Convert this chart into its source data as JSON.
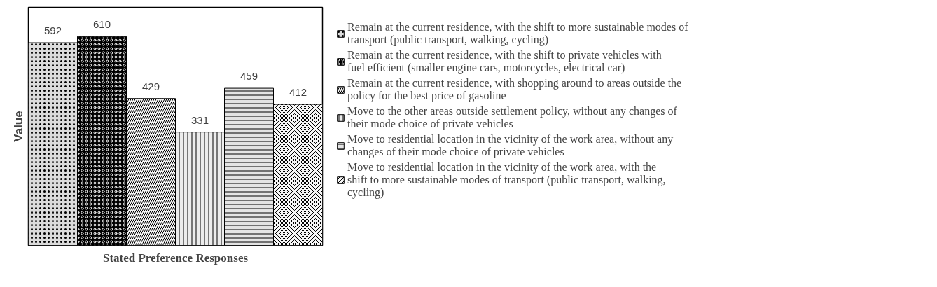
{
  "chart_data": {
    "type": "bar",
    "xlabel": "Stated Preference Responses",
    "ylabel": "Value",
    "categories": [
      null
    ],
    "series": [
      {
        "name": "Remain at the current residence, with the shift to more sustainable modes of transport (public transport, walking, cycling)",
        "color": "#dcdcdc",
        "values": [
          592
        ]
      },
      {
        "name": "Remain at the current residence, with the shift to private vehicles with fuel efficient (smaller engine cars, motorcycles, electrical car)",
        "color": "#000000",
        "values": [
          610
        ]
      },
      {
        "name": "Remain at the current residence, with shopping around to areas outside the policy for the best price of gasoline",
        "color": "#f3f3f3",
        "values": [
          429
        ]
      },
      {
        "name": "Move to the other areas outside settlement policy, without any changes of their mode choice of private vehicles",
        "color": "#ececec",
        "values": [
          331
        ]
      },
      {
        "name": "Move to residential location in the vicinity of the work area, without any changes of their mode choice of private vehicles",
        "color": "#e4e4e4",
        "values": [
          459
        ]
      },
      {
        "name": "Move to residential location in the vicinity of the work area, with the shift to more sustainable modes of transport (public transport, walking, cycling)",
        "color": "#f7f7f7",
        "values": [
          412
        ]
      }
    ],
    "data_labels": true,
    "grid": false,
    "legend": "right"
  }
}
